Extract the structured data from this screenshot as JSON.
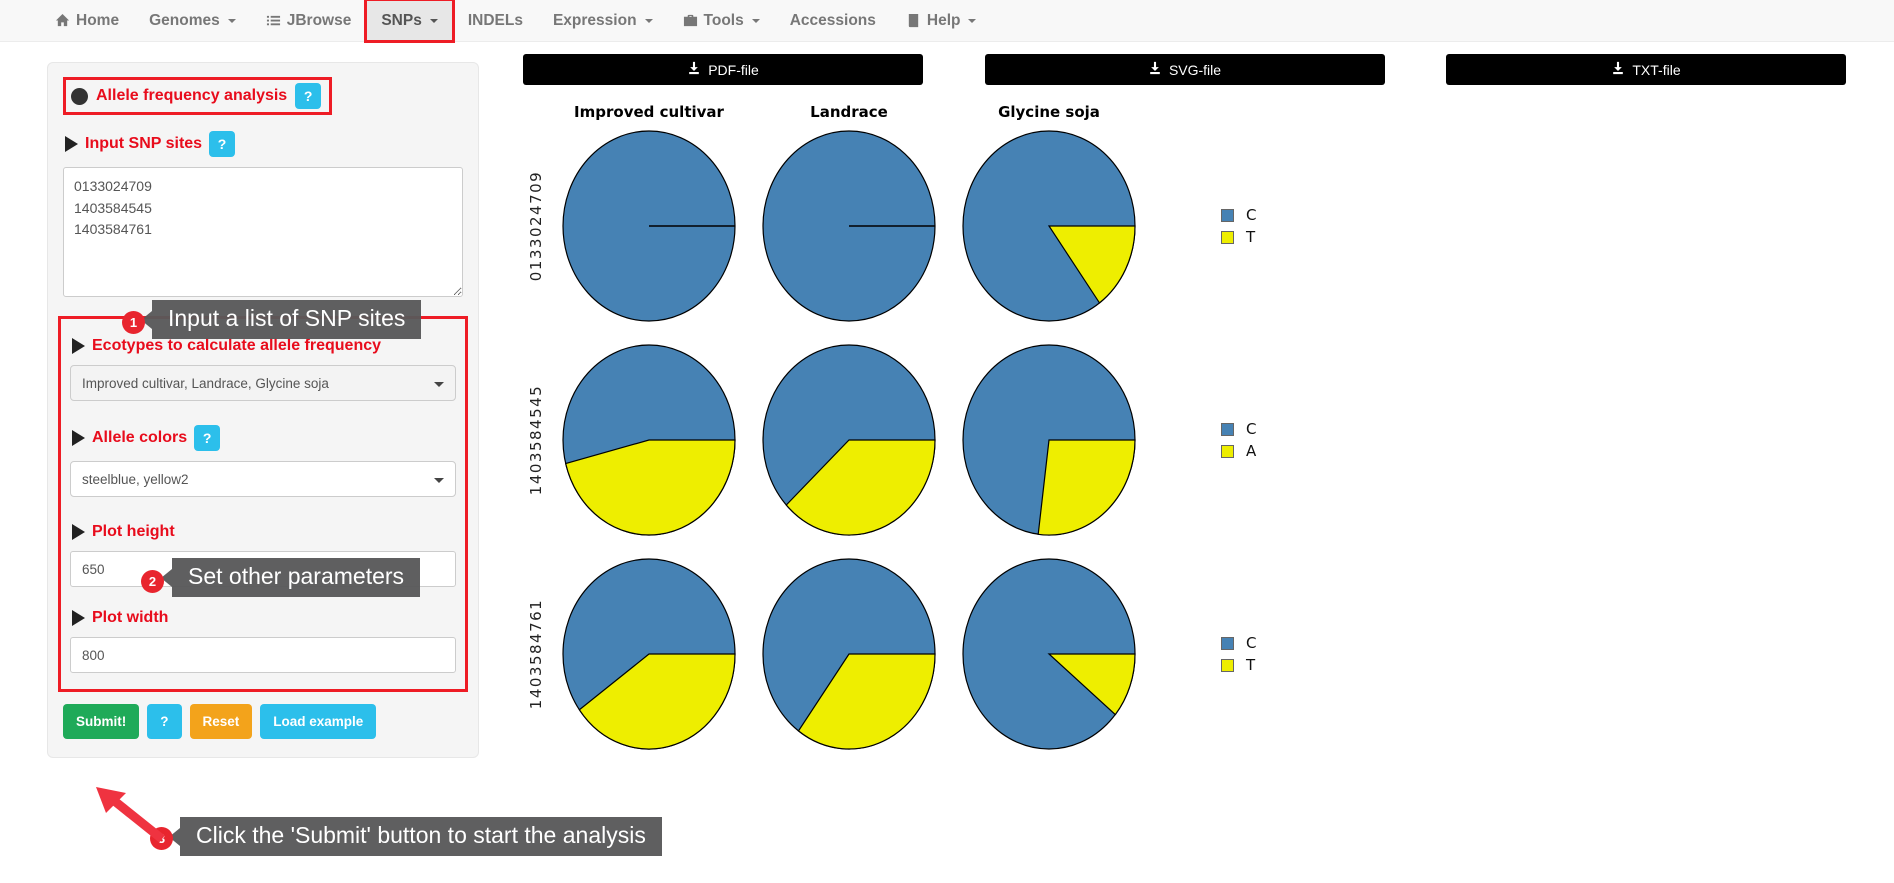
{
  "colors": {
    "annotation_red": "#ee1c25",
    "label_red": "#e80c1c",
    "info_cyan": "#2cbfeb",
    "success_green": "#1faa59",
    "warning_orange": "#f3a31b",
    "nav_bg": "#f8f8f8",
    "panel_bg": "#f5f5f5",
    "tooltip_bg": "#58585a",
    "steelblue": "#4682B4",
    "yellow2": "#EEEE00"
  },
  "nav": {
    "items": [
      {
        "label": "Home",
        "icon": "home-icon",
        "caret": false,
        "active": false,
        "annotated": false
      },
      {
        "label": "Genomes",
        "icon": "",
        "caret": true,
        "active": false,
        "annotated": false
      },
      {
        "label": "JBrowse",
        "icon": "list-icon",
        "caret": false,
        "active": false,
        "annotated": false
      },
      {
        "label": "SNPs",
        "icon": "",
        "caret": true,
        "active": true,
        "annotated": true
      },
      {
        "label": "INDELs",
        "icon": "",
        "caret": false,
        "active": false,
        "annotated": false
      },
      {
        "label": "Expression",
        "icon": "",
        "caret": true,
        "active": false,
        "annotated": false
      },
      {
        "label": "Tools",
        "icon": "briefcase-icon",
        "caret": true,
        "active": false,
        "annotated": false
      },
      {
        "label": "Accessions",
        "icon": "",
        "caret": false,
        "active": false,
        "annotated": false
      },
      {
        "label": "Help",
        "icon": "book-icon",
        "caret": true,
        "active": false,
        "annotated": false
      }
    ]
  },
  "sidebar": {
    "title": "Allele frequency analysis",
    "title_help": "?",
    "input_snp_label": "Input SNP sites",
    "input_snp_help": "?",
    "snp_textarea_value": "0133024709\n1403584545\n1403584761",
    "ecotypes_label": "Ecotypes to calculate allele frequency",
    "ecotypes_value": "Improved cultivar, Landrace, Glycine soja",
    "allele_colors_label": "Allele colors",
    "allele_colors_help": "?",
    "allele_colors_value": "steelblue, yellow2",
    "plot_height_label": "Plot height",
    "plot_height_value": "650",
    "plot_width_label": "Plot width",
    "plot_width_value": "800",
    "buttons": {
      "submit": "Submit!",
      "help": "?",
      "reset": "Reset",
      "load_example": "Load example"
    }
  },
  "annotations": {
    "steps": [
      {
        "num": "1",
        "text": "Input a list of SNP sites"
      },
      {
        "num": "2",
        "text": "Set other parameters"
      },
      {
        "num": "3",
        "text": "Click the 'Submit' button to start the analysis"
      }
    ]
  },
  "downloads": [
    {
      "label": "PDF-file",
      "icon": "download-icon"
    },
    {
      "label": "SVG-file",
      "icon": "download-icon"
    },
    {
      "label": "TXT-file",
      "icon": "download-icon"
    }
  ],
  "chart_data": {
    "type": "pie",
    "title": "",
    "legend_position": "right",
    "grid": {
      "columns": [
        "Improved cultivar",
        "Landrace",
        "Glycine soja"
      ],
      "colors": [
        "#4682B4",
        "#EEEE00"
      ],
      "rows": [
        {
          "label": "0133024709",
          "alleles": [
            "C",
            "T"
          ],
          "values_pct": [
            [
              100,
              0
            ],
            [
              100,
              0
            ],
            [
              85,
              15
            ]
          ]
        },
        {
          "label": "1403584545",
          "alleles": [
            "C",
            "A"
          ],
          "values_pct": [
            [
              54,
              46
            ],
            [
              62,
              38
            ],
            [
              73,
              27
            ]
          ]
        },
        {
          "label": "1403584761",
          "alleles": [
            "C",
            "T"
          ],
          "values_pct": [
            [
              60,
              40
            ],
            [
              65,
              35
            ],
            [
              89,
              11
            ]
          ]
        }
      ]
    }
  }
}
